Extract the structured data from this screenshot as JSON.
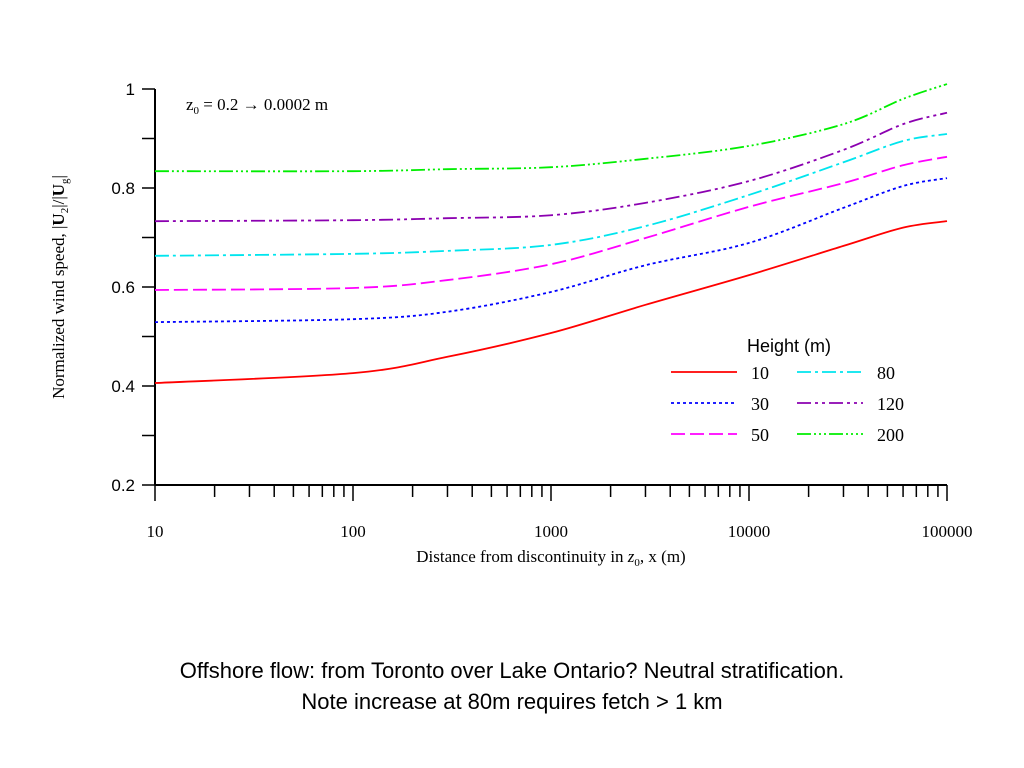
{
  "chart_data": {
    "type": "line",
    "annotation": {
      "z": "z",
      "sub": "0",
      "rest": " = 0.2  →  0.0002 m"
    },
    "xlabel": {
      "pre": "Distance from discontinuity in ",
      "z": "z",
      "sub": "0",
      "post": ",  x (m)"
    },
    "ylabel": {
      "pre": "Normalized wind speed, |",
      "u1": "U",
      "sub1": "2",
      "mid": "|/|",
      "u2": "U",
      "sub2": "g",
      "post": "|"
    },
    "x_scale": "log",
    "xlim": [
      10,
      100000
    ],
    "ylim": [
      0.2,
      1.0
    ],
    "x_tick_labels": [
      "10",
      "100",
      "1000",
      "10000",
      "100000"
    ],
    "y_tick_labels": [
      "0.2",
      "0.4",
      "0.6",
      "0.8",
      "1"
    ],
    "grid": false,
    "legend": {
      "title": "Height (m)",
      "placement": "lower-right"
    },
    "x": [
      10,
      100,
      300,
      1000,
      3000,
      10000,
      30000,
      60000,
      100000
    ],
    "series": [
      {
        "name": "10",
        "color": "#ff0000",
        "dash": "solid",
        "values": [
          0.406,
          0.426,
          0.459,
          0.507,
          0.564,
          0.624,
          0.683,
          0.72,
          0.733
        ]
      },
      {
        "name": "30",
        "color": "#0000ff",
        "dash": "dotted",
        "values": [
          0.529,
          0.535,
          0.55,
          0.59,
          0.644,
          0.689,
          0.76,
          0.804,
          0.82
        ]
      },
      {
        "name": "50",
        "color": "#ff00ff",
        "dash": "long-dash",
        "values": [
          0.594,
          0.598,
          0.614,
          0.646,
          0.699,
          0.762,
          0.81,
          0.846,
          0.863
        ]
      },
      {
        "name": "80",
        "color": "#00e5ee",
        "dash": "dash-dot",
        "values": [
          0.663,
          0.667,
          0.673,
          0.685,
          0.723,
          0.786,
          0.852,
          0.895,
          0.909
        ]
      },
      {
        "name": "120",
        "color": "#8b00b0",
        "dash": "dash-dot-dot",
        "values": [
          0.733,
          0.735,
          0.739,
          0.745,
          0.77,
          0.814,
          0.877,
          0.929,
          0.952
        ]
      },
      {
        "name": "200",
        "color": "#00ee00",
        "dash": "dash-dot-dot-dot",
        "values": [
          0.834,
          0.834,
          0.838,
          0.842,
          0.859,
          0.885,
          0.929,
          0.98,
          1.01
        ]
      }
    ]
  },
  "caption": {
    "line1": "Offshore flow: from Toronto over Lake Ontario?  Neutral stratification.",
    "line2": "Note increase at 80m requires fetch > 1 km"
  }
}
